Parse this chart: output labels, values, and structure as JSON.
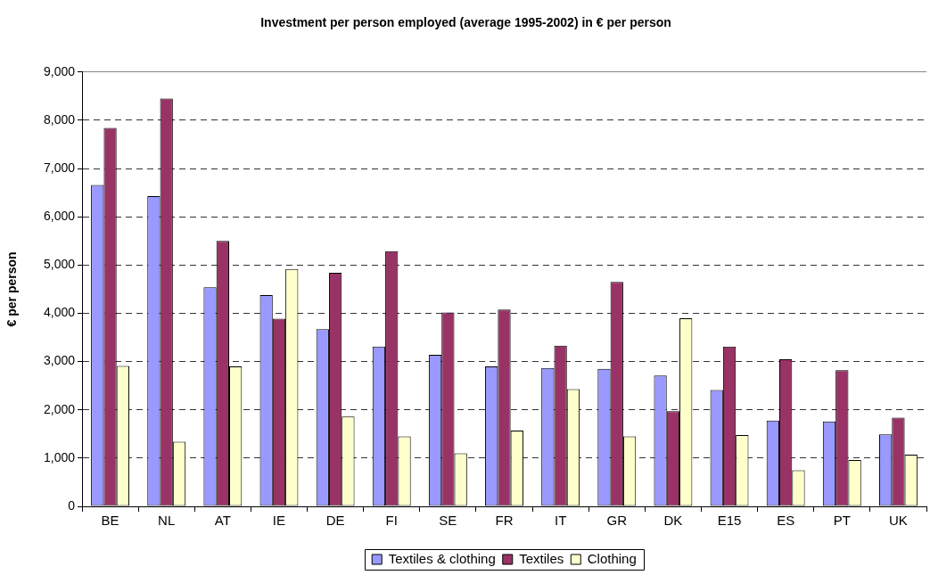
{
  "chart_data": {
    "type": "bar",
    "title": "Investment per person employed (average 1995-2002) in € per person",
    "ylabel": "€ per person",
    "categories": [
      "BE",
      "NL",
      "AT",
      "IE",
      "DE",
      "FI",
      "SE",
      "FR",
      "IT",
      "GR",
      "DK",
      "E15",
      "ES",
      "PT",
      "UK"
    ],
    "series": [
      {
        "name": "Textiles & clothing",
        "color": "#9999ff",
        "values": [
          6660,
          6430,
          4540,
          4380,
          3670,
          3310,
          3140,
          2900,
          2870,
          2850,
          2710,
          2410,
          1780,
          1760,
          1490
        ]
      },
      {
        "name": "Textiles",
        "color": "#993366",
        "values": [
          7840,
          8450,
          5500,
          3890,
          4840,
          5290,
          4020,
          4080,
          3330,
          4650,
          1970,
          3310,
          3050,
          2820,
          1840
        ]
      },
      {
        "name": "Clothing",
        "color": "#ffffcc",
        "values": [
          2910,
          1340,
          2900,
          4920,
          1860,
          1450,
          1100,
          1570,
          2430,
          1450,
          3900,
          1480,
          750,
          960,
          1070
        ]
      }
    ],
    "ylim": [
      0,
      9000
    ],
    "yticks": [
      0,
      {
        "value": 1000,
        "label": "1,000"
      },
      {
        "value": 2000,
        "label": "2,000"
      },
      {
        "value": 3000,
        "label": "3,000"
      },
      {
        "value": 4000,
        "label": "4,000"
      },
      {
        "value": 5000,
        "label": "5,000"
      },
      {
        "value": 6000,
        "label": "6,000"
      },
      {
        "value": 7000,
        "label": "7,000"
      },
      {
        "value": 8000,
        "label": "8,000"
      },
      {
        "value": 9000,
        "label": "9,000"
      }
    ],
    "grid": "y",
    "legend": "bottom"
  }
}
